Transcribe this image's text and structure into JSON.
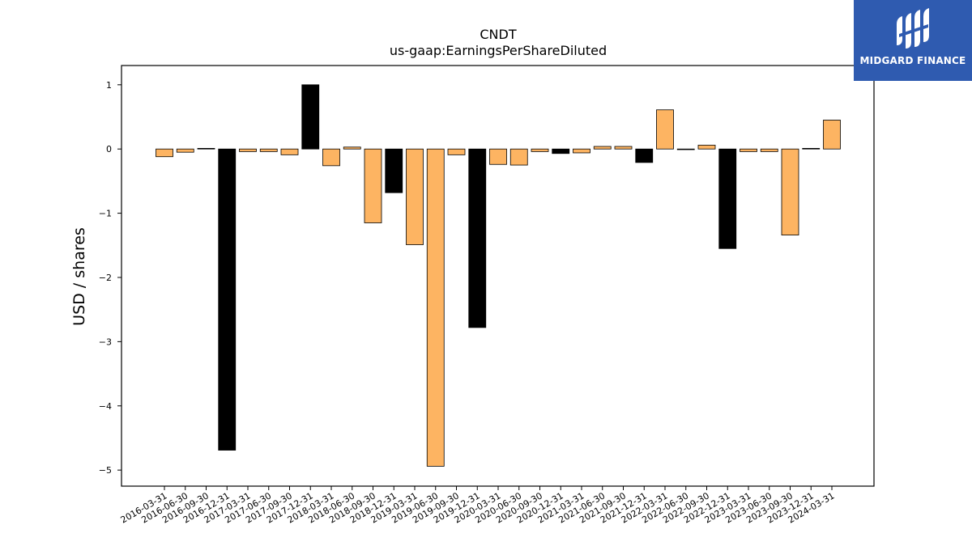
{
  "brand": {
    "name": "MIDGARD FINANCE",
    "bg_color": "#2f5bb0"
  },
  "chart_data": {
    "type": "bar",
    "title": "CNDT",
    "subtitle": "us-gaap:EarningsPerShareDiluted",
    "xlabel": "",
    "ylabel": "USD / shares",
    "ylim": [
      -5.25,
      1.3
    ],
    "yticks": [
      1,
      0,
      -1,
      -2,
      -3,
      -4,
      -5
    ],
    "ytick_labels": [
      "1",
      "0",
      "−1",
      "−2",
      "−3",
      "−4",
      "−5"
    ],
    "grid": false,
    "legend": null,
    "colors": {
      "orange": "#fdb462",
      "black": "#000000"
    },
    "categories": [
      "2016-03-31",
      "2016-06-30",
      "2016-09-30",
      "2016-12-31",
      "2017-03-31",
      "2017-06-30",
      "2017-09-30",
      "2017-12-31",
      "2018-03-31",
      "2018-06-30",
      "2018-09-30",
      "2018-12-31",
      "2019-03-31",
      "2019-06-30",
      "2019-09-30",
      "2019-12-31",
      "2020-03-31",
      "2020-06-30",
      "2020-09-30",
      "2020-12-31",
      "2021-03-31",
      "2021-06-30",
      "2021-09-30",
      "2021-12-31",
      "2022-03-31",
      "2022-06-30",
      "2022-09-30",
      "2022-12-31",
      "2023-03-31",
      "2023-06-30",
      "2023-09-30",
      "2023-12-31",
      "2024-03-31"
    ],
    "values": [
      -0.12,
      -0.05,
      0.01,
      -4.69,
      -0.04,
      -0.04,
      -0.09,
      1.0,
      -0.26,
      0.03,
      -1.15,
      -0.68,
      -1.49,
      -4.94,
      -0.09,
      -2.78,
      -0.24,
      -0.25,
      -0.04,
      -0.07,
      -0.06,
      0.04,
      0.04,
      -0.21,
      0.61,
      -0.01,
      0.06,
      -1.55,
      -0.04,
      -0.04,
      -1.34,
      0.01,
      0.45
    ],
    "bar_colors": [
      "orange",
      "orange",
      "black",
      "black",
      "orange",
      "orange",
      "orange",
      "black",
      "orange",
      "orange",
      "orange",
      "black",
      "orange",
      "orange",
      "orange",
      "black",
      "orange",
      "orange",
      "orange",
      "black",
      "orange",
      "orange",
      "orange",
      "black",
      "orange",
      "black",
      "orange",
      "black",
      "orange",
      "orange",
      "orange",
      "black",
      "orange"
    ]
  }
}
